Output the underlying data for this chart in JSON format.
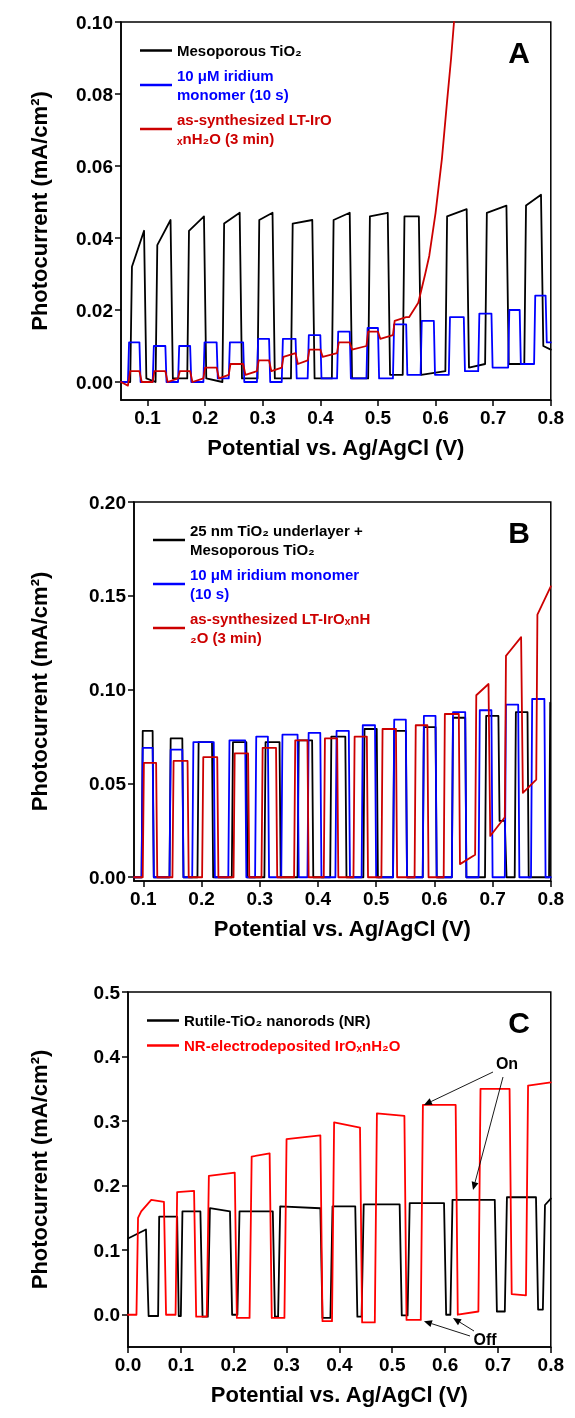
{
  "chart_data": [
    {
      "type": "line",
      "title": "A",
      "xlabel": "Potential vs. Ag/AgCl (V)",
      "ylabel": "Photocurrent (mA/cm²)",
      "xlim": [
        0.054,
        0.8
      ],
      "ylim": [
        -0.005,
        0.1
      ],
      "xticks": [
        0.1,
        0.2,
        0.3,
        0.4,
        0.5,
        0.6,
        0.7,
        0.8
      ],
      "yticks": [
        {
          "value": 0,
          "label": "0.00"
        },
        0.02,
        0.04,
        0.06,
        0.08,
        {
          "value": 0.1,
          "label": "0.10"
        }
      ],
      "grid": false,
      "legend": "top left",
      "marker": "none",
      "line_style": "solid",
      "series": [
        {
          "name": "Mesoporous TiO₂",
          "color": "#000000",
          "x": [
            0.054,
            0.07,
            0.073,
            0.094,
            0.098,
            0.114,
            0.117,
            0.14,
            0.144,
            0.169,
            0.172,
            0.198,
            0.202,
            0.23,
            0.233,
            0.26,
            0.264,
            0.291,
            0.294,
            0.317,
            0.321,
            0.349,
            0.352,
            0.386,
            0.39,
            0.42,
            0.423,
            0.451,
            0.455,
            0.483,
            0.486,
            0.517,
            0.521,
            0.543,
            0.546,
            0.571,
            0.575,
            0.617,
            0.62,
            0.654,
            0.658,
            0.686,
            0.689,
            0.723,
            0.727,
            0.754,
            0.757,
            0.783,
            0.787,
            0.8
          ],
          "values": [
            0.0,
            0.0,
            0.032,
            0.042,
            0.001,
            0.0,
            0.038,
            0.045,
            0.001,
            0.001,
            0.042,
            0.046,
            0.001,
            0.0,
            0.044,
            0.047,
            0.001,
            0.001,
            0.045,
            0.047,
            0.001,
            0.001,
            0.044,
            0.045,
            0.001,
            0.001,
            0.045,
            0.047,
            0.001,
            0.001,
            0.046,
            0.047,
            0.002,
            0.002,
            0.046,
            0.046,
            0.002,
            0.003,
            0.046,
            0.048,
            0.004,
            0.005,
            0.047,
            0.049,
            0.005,
            0.005,
            0.049,
            0.052,
            0.01,
            0.009
          ]
        },
        {
          "name": "10 μM iridium monomer (10 s)",
          "color": "#0000ff",
          "x": [
            0.054,
            0.066,
            0.068,
            0.086,
            0.088,
            0.109,
            0.111,
            0.131,
            0.133,
            0.153,
            0.155,
            0.174,
            0.176,
            0.197,
            0.199,
            0.22,
            0.222,
            0.241,
            0.243,
            0.266,
            0.268,
            0.29,
            0.292,
            0.311,
            0.313,
            0.333,
            0.335,
            0.357,
            0.359,
            0.378,
            0.38,
            0.4,
            0.402,
            0.429,
            0.431,
            0.451,
            0.453,
            0.48,
            0.482,
            0.5,
            0.502,
            0.526,
            0.528,
            0.549,
            0.551,
            0.574,
            0.576,
            0.597,
            0.599,
            0.623,
            0.625,
            0.649,
            0.651,
            0.674,
            0.676,
            0.697,
            0.699,
            0.726,
            0.728,
            0.746,
            0.748,
            0.771,
            0.773,
            0.791,
            0.793,
            0.8
          ],
          "values": [
            0.0,
            0.0,
            0.011,
            0.011,
            0.0,
            0.0,
            0.01,
            0.01,
            0.0,
            0.0,
            0.01,
            0.01,
            0.0,
            0.0,
            0.011,
            0.011,
            0.001,
            0.001,
            0.011,
            0.011,
            0.0,
            0.0,
            0.012,
            0.012,
            0.0,
            0.0,
            0.012,
            0.012,
            0.001,
            0.001,
            0.013,
            0.013,
            0.001,
            0.001,
            0.014,
            0.014,
            0.001,
            0.001,
            0.015,
            0.015,
            0.001,
            0.001,
            0.016,
            0.016,
            0.002,
            0.002,
            0.017,
            0.017,
            0.002,
            0.002,
            0.018,
            0.018,
            0.003,
            0.003,
            0.019,
            0.019,
            0.004,
            0.004,
            0.02,
            0.02,
            0.005,
            0.005,
            0.024,
            0.024,
            0.011,
            0.011
          ]
        },
        {
          "name": "as-synthesized LT-IrOₓnH₂O (3 min)",
          "color": "#cc0000",
          "x": [
            0.054,
            0.066,
            0.07,
            0.086,
            0.09,
            0.109,
            0.112,
            0.131,
            0.135,
            0.153,
            0.156,
            0.174,
            0.178,
            0.197,
            0.2,
            0.22,
            0.224,
            0.241,
            0.244,
            0.266,
            0.27,
            0.29,
            0.293,
            0.311,
            0.315,
            0.333,
            0.336,
            0.357,
            0.361,
            0.378,
            0.381,
            0.4,
            0.404,
            0.429,
            0.432,
            0.451,
            0.455,
            0.48,
            0.483,
            0.5,
            0.504,
            0.526,
            0.529,
            0.549,
            0.554,
            0.57,
            0.582,
            0.589,
            0.6,
            0.611,
            0.62,
            0.627,
            0.632
          ],
          "values": [
            0.0,
            -0.001,
            0.003,
            0.003,
            0.0,
            0.0,
            0.003,
            0.003,
            0.0,
            0.001,
            0.003,
            0.003,
            0.0,
            0.001,
            0.004,
            0.004,
            0.001,
            0.002,
            0.005,
            0.005,
            0.002,
            0.003,
            0.006,
            0.006,
            0.003,
            0.004,
            0.007,
            0.008,
            0.005,
            0.006,
            0.009,
            0.009,
            0.007,
            0.008,
            0.011,
            0.011,
            0.009,
            0.01,
            0.014,
            0.014,
            0.012,
            0.013,
            0.017,
            0.018,
            0.018,
            0.022,
            0.03,
            0.035,
            0.047,
            0.062,
            0.078,
            0.09,
            0.1
          ]
        }
      ]
    },
    {
      "type": "line",
      "title": "B",
      "xlabel": "Potential vs. Ag/AgCl (V)",
      "ylabel": "Photocurrent (mA/cm²)",
      "xlim": [
        0.084,
        0.8
      ],
      "ylim": [
        -0.002,
        0.2
      ],
      "xticks": [
        0.1,
        0.2,
        0.3,
        0.4,
        0.5,
        0.6,
        0.7,
        0.8
      ],
      "yticks": [
        {
          "value": 0,
          "label": "0.00"
        },
        0.05,
        {
          "value": 0.1,
          "label": "0.10"
        },
        0.15,
        {
          "value": 0.2,
          "label": "0.20"
        }
      ],
      "grid": false,
      "legend": "top left",
      "marker": "none",
      "line_style": "solid",
      "series": [
        {
          "name": "25 nm TiO₂ underlayer + Mesoporous TiO₂",
          "color": "#000000",
          "x": [
            0.084,
            0.097,
            0.099,
            0.116,
            0.118,
            0.145,
            0.147,
            0.167,
            0.169,
            0.193,
            0.195,
            0.218,
            0.22,
            0.252,
            0.254,
            0.277,
            0.279,
            0.308,
            0.31,
            0.334,
            0.336,
            0.365,
            0.367,
            0.39,
            0.392,
            0.421,
            0.423,
            0.447,
            0.449,
            0.478,
            0.48,
            0.501,
            0.503,
            0.529,
            0.531,
            0.551,
            0.553,
            0.58,
            0.582,
            0.602,
            0.604,
            0.63,
            0.632,
            0.653,
            0.655,
            0.687,
            0.689,
            0.71,
            0.712,
            0.721,
            0.724,
            0.738,
            0.74,
            0.76,
            0.762,
            0.797,
            0.799,
            0.8
          ],
          "values": [
            0.0,
            0.0,
            0.078,
            0.078,
            0.0,
            0.0,
            0.074,
            0.074,
            0.0,
            0.0,
            0.072,
            0.072,
            0.0,
            0.0,
            0.072,
            0.072,
            0.0,
            0.0,
            0.072,
            0.072,
            0.0,
            0.0,
            0.073,
            0.073,
            0.0,
            0.0,
            0.075,
            0.075,
            0.0,
            0.0,
            0.079,
            0.079,
            0.0,
            0.0,
            0.078,
            0.078,
            0.0,
            0.0,
            0.08,
            0.08,
            0.0,
            0.0,
            0.085,
            0.085,
            0.0,
            0.0,
            0.086,
            0.086,
            0.03,
            0.03,
            0.0,
            0.0,
            0.088,
            0.088,
            0.0,
            0.0,
            0.093,
            0.093
          ]
        },
        {
          "name": "10 μM iridium monomer (10 s)",
          "color": "#0000ff",
          "x": [
            0.084,
            0.097,
            0.099,
            0.116,
            0.118,
            0.145,
            0.147,
            0.167,
            0.169,
            0.184,
            0.186,
            0.221,
            0.223,
            0.246,
            0.248,
            0.275,
            0.277,
            0.292,
            0.294,
            0.314,
            0.316,
            0.337,
            0.339,
            0.365,
            0.367,
            0.382,
            0.384,
            0.404,
            0.406,
            0.43,
            0.432,
            0.453,
            0.455,
            0.475,
            0.477,
            0.498,
            0.5,
            0.529,
            0.531,
            0.551,
            0.553,
            0.58,
            0.582,
            0.602,
            0.604,
            0.63,
            0.632,
            0.653,
            0.655,
            0.676,
            0.678,
            0.698,
            0.7,
            0.721,
            0.723,
            0.744,
            0.746,
            0.766,
            0.768,
            0.789,
            0.791,
            0.8
          ],
          "values": [
            0.0,
            0.0,
            0.069,
            0.069,
            0.0,
            0.0,
            0.068,
            0.068,
            0.0,
            0.0,
            0.072,
            0.072,
            0.0,
            0.0,
            0.073,
            0.073,
            0.0,
            0.0,
            0.075,
            0.075,
            0.0,
            0.0,
            0.076,
            0.076,
            0.0,
            0.0,
            0.077,
            0.077,
            0.0,
            0.0,
            0.078,
            0.078,
            0.0,
            0.0,
            0.081,
            0.081,
            0.0,
            0.0,
            0.084,
            0.084,
            0.0,
            0.0,
            0.086,
            0.086,
            0.0,
            0.0,
            0.088,
            0.088,
            0.0,
            0.0,
            0.089,
            0.089,
            0.0,
            0.0,
            0.092,
            0.092,
            0.0,
            0.0,
            0.095,
            0.095,
            0.0,
            0.0
          ]
        },
        {
          "name": "as-synthesized LT-IrOₓnH₂O (3 min)",
          "color": "#cc0000",
          "x": [
            0.084,
            0.099,
            0.101,
            0.122,
            0.124,
            0.15,
            0.152,
            0.176,
            0.178,
            0.201,
            0.203,
            0.227,
            0.229,
            0.255,
            0.257,
            0.28,
            0.282,
            0.303,
            0.305,
            0.328,
            0.33,
            0.359,
            0.361,
            0.382,
            0.384,
            0.41,
            0.412,
            0.433,
            0.435,
            0.461,
            0.463,
            0.484,
            0.486,
            0.509,
            0.511,
            0.534,
            0.536,
            0.566,
            0.568,
            0.588,
            0.59,
            0.616,
            0.618,
            0.642,
            0.644,
            0.67,
            0.672,
            0.693,
            0.696,
            0.721,
            0.723,
            0.749,
            0.752,
            0.775,
            0.777,
            0.8
          ],
          "values": [
            0.0,
            0.0,
            0.061,
            0.061,
            0.0,
            0.0,
            0.062,
            0.062,
            0.0,
            0.0,
            0.064,
            0.064,
            0.0,
            0.0,
            0.066,
            0.066,
            0.0,
            0.0,
            0.069,
            0.069,
            0.0,
            0.0,
            0.073,
            0.073,
            0.0,
            0.0,
            0.074,
            0.074,
            0.0,
            0.0,
            0.075,
            0.075,
            0.0,
            0.0,
            0.079,
            0.079,
            0.0,
            0.0,
            0.081,
            0.081,
            0.0,
            0.0,
            0.087,
            0.087,
            0.007,
            0.012,
            0.097,
            0.103,
            0.022,
            0.032,
            0.118,
            0.128,
            0.045,
            0.052,
            0.14,
            0.155
          ]
        }
      ]
    },
    {
      "type": "line",
      "title": "C",
      "xlabel": "Potential vs. Ag/AgCl (V)",
      "ylabel": "Photocurrent (mA/cm²)",
      "xlim": [
        0,
        0.8
      ],
      "ylim": [
        -0.05,
        0.5
      ],
      "xticks": [
        {
          "value": 0,
          "label": "0.0"
        },
        0.1,
        0.2,
        0.3,
        0.4,
        0.5,
        0.6,
        0.7,
        0.8
      ],
      "yticks": [
        {
          "value": 0,
          "label": "0.0"
        },
        0.1,
        0.2,
        0.3,
        0.4,
        0.5
      ],
      "grid": false,
      "legend": "top left",
      "marker": "none",
      "line_style": "solid",
      "annotations": [
        {
          "text": "On",
          "x": 0.56,
          "y": 0.325
        },
        {
          "text": "Off",
          "x": 0.56,
          "y": -0.01
        }
      ],
      "series": [
        {
          "name": "Rutile-TiO₂ nanorods (NR)",
          "color": "#000000",
          "x": [
            0.0,
            0.034,
            0.039,
            0.057,
            0.059,
            0.093,
            0.096,
            0.1,
            0.103,
            0.137,
            0.141,
            0.151,
            0.155,
            0.193,
            0.197,
            0.207,
            0.211,
            0.274,
            0.278,
            0.284,
            0.288,
            0.364,
            0.368,
            0.383,
            0.387,
            0.43,
            0.434,
            0.442,
            0.446,
            0.514,
            0.518,
            0.529,
            0.533,
            0.598,
            0.602,
            0.61,
            0.614,
            0.694,
            0.698,
            0.713,
            0.717,
            0.772,
            0.776,
            0.785,
            0.789,
            0.8
          ],
          "values": [
            0.118,
            0.132,
            -0.002,
            -0.002,
            0.152,
            0.152,
            -0.002,
            -0.002,
            0.16,
            0.16,
            -0.003,
            -0.003,
            0.165,
            0.16,
            0.0,
            0.0,
            0.16,
            0.16,
            -0.003,
            -0.003,
            0.168,
            0.165,
            -0.005,
            -0.005,
            0.168,
            0.168,
            -0.003,
            -0.003,
            0.171,
            0.171,
            -0.001,
            -0.001,
            0.173,
            0.173,
            0.0,
            0.0,
            0.178,
            0.178,
            0.005,
            0.005,
            0.182,
            0.182,
            0.008,
            0.008,
            0.17,
            0.18
          ]
        },
        {
          "name": "NR-electrodeposited IrOₓnH₂O",
          "color": "#ff0000",
          "x": [
            0.0,
            0.016,
            0.019,
            0.025,
            0.044,
            0.068,
            0.072,
            0.09,
            0.093,
            0.125,
            0.129,
            0.149,
            0.153,
            0.202,
            0.206,
            0.23,
            0.234,
            0.268,
            0.272,
            0.296,
            0.3,
            0.364,
            0.368,
            0.386,
            0.39,
            0.439,
            0.443,
            0.467,
            0.471,
            0.523,
            0.527,
            0.554,
            0.558,
            0.62,
            0.624,
            0.663,
            0.667,
            0.722,
            0.726,
            0.753,
            0.757,
            0.8
          ],
          "values": [
            0.0,
            0.0,
            0.15,
            0.16,
            0.178,
            0.175,
            0.0,
            0.0,
            0.19,
            0.192,
            -0.003,
            -0.003,
            0.215,
            0.22,
            -0.005,
            -0.005,
            0.245,
            0.25,
            -0.005,
            -0.005,
            0.272,
            0.278,
            -0.01,
            -0.01,
            0.298,
            0.29,
            -0.012,
            -0.012,
            0.312,
            0.308,
            -0.008,
            -0.008,
            0.325,
            0.325,
            0.0,
            0.005,
            0.35,
            0.35,
            0.032,
            0.03,
            0.355,
            0.36
          ]
        }
      ]
    }
  ]
}
